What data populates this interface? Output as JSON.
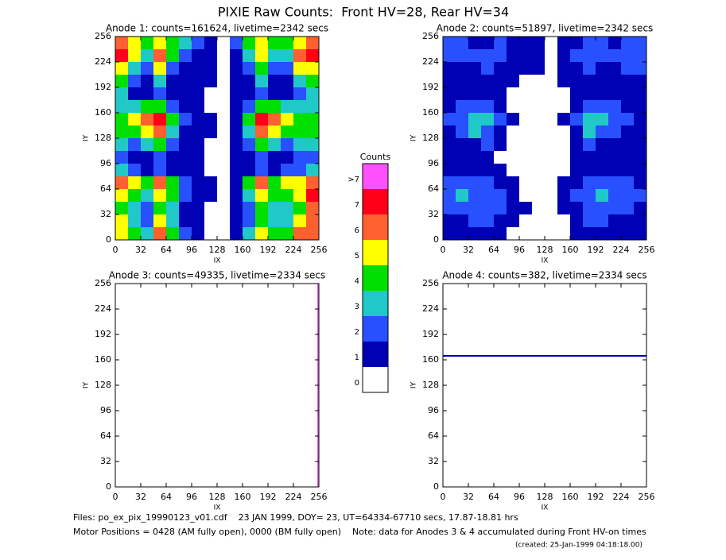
{
  "title": "PIXIE Raw Counts:  Front HV=28, Rear HV=34",
  "colorbar": {
    "title": "Counts",
    "labels": [
      "0",
      "1",
      "2",
      "3",
      "4",
      "5",
      "6",
      "7",
      ">7"
    ],
    "colors": [
      "#ffffff",
      "#0000b4",
      "#2850ff",
      "#20c8c8",
      "#00e000",
      "#ffff00",
      "#ff6030",
      "#ff0018",
      "#ff50ff"
    ]
  },
  "chart_data": [
    {
      "type": "heatmap",
      "title": "Anode 1: counts=161624, livetime=2342 secs",
      "xlabel": "IX",
      "ylabel": "IY",
      "xlim": [
        0,
        256
      ],
      "ylim": [
        0,
        256
      ],
      "xticks": [
        0,
        32,
        64,
        96,
        128,
        160,
        192,
        224,
        256
      ],
      "yticks": [
        0,
        32,
        64,
        96,
        128,
        160,
        192,
        224,
        256
      ],
      "levels": [
        [
          6,
          5,
          4,
          5,
          4,
          3,
          2,
          1,
          0,
          2,
          4,
          5,
          4,
          4,
          5,
          6
        ],
        [
          7,
          5,
          3,
          6,
          4,
          2,
          1,
          1,
          0,
          1,
          3,
          5,
          3,
          3,
          6,
          7
        ],
        [
          5,
          3,
          2,
          5,
          2,
          1,
          1,
          1,
          0,
          1,
          2,
          4,
          2,
          2,
          5,
          5
        ],
        [
          4,
          2,
          1,
          3,
          1,
          1,
          1,
          1,
          0,
          1,
          1,
          3,
          1,
          1,
          3,
          4
        ],
        [
          3,
          1,
          1,
          2,
          1,
          1,
          1,
          0,
          0,
          1,
          1,
          2,
          1,
          1,
          2,
          3
        ],
        [
          3,
          3,
          4,
          4,
          2,
          1,
          1,
          0,
          0,
          1,
          2,
          4,
          4,
          3,
          3,
          3
        ],
        [
          4,
          5,
          6,
          7,
          4,
          2,
          1,
          1,
          0,
          1,
          4,
          7,
          6,
          5,
          4,
          4
        ],
        [
          4,
          4,
          5,
          6,
          3,
          1,
          1,
          1,
          0,
          1,
          3,
          6,
          5,
          4,
          4,
          4
        ],
        [
          3,
          2,
          3,
          4,
          2,
          1,
          1,
          0,
          0,
          1,
          2,
          4,
          3,
          2,
          3,
          3
        ],
        [
          2,
          1,
          1,
          2,
          1,
          1,
          1,
          0,
          0,
          1,
          1,
          2,
          1,
          1,
          2,
          2
        ],
        [
          3,
          2,
          1,
          2,
          1,
          1,
          1,
          0,
          0,
          1,
          1,
          2,
          1,
          2,
          2,
          3
        ],
        [
          6,
          5,
          4,
          6,
          4,
          2,
          1,
          1,
          0,
          1,
          4,
          6,
          4,
          5,
          5,
          6
        ],
        [
          5,
          4,
          3,
          5,
          4,
          2,
          1,
          1,
          0,
          1,
          3,
          5,
          4,
          4,
          5,
          7
        ],
        [
          4,
          3,
          2,
          4,
          3,
          1,
          1,
          0,
          0,
          1,
          2,
          4,
          3,
          3,
          4,
          6
        ],
        [
          5,
          3,
          2,
          5,
          3,
          1,
          1,
          0,
          0,
          1,
          2,
          4,
          3,
          3,
          5,
          6
        ],
        [
          5,
          4,
          3,
          6,
          4,
          2,
          1,
          0,
          0,
          1,
          3,
          5,
          4,
          4,
          6,
          6
        ]
      ]
    },
    {
      "type": "heatmap",
      "title": "Anode 2: counts=51897, livetime=2342 secs",
      "xlabel": "IX",
      "ylabel": "IY",
      "xlim": [
        0,
        256
      ],
      "ylim": [
        0,
        256
      ],
      "xticks": [
        0,
        32,
        64,
        96,
        128,
        160,
        192,
        224,
        256
      ],
      "yticks": [
        0,
        32,
        64,
        96,
        128,
        160,
        192,
        224,
        256
      ],
      "levels": [
        [
          2,
          2,
          1,
          1,
          2,
          1,
          1,
          1,
          0,
          1,
          1,
          2,
          2,
          1,
          2,
          2
        ],
        [
          2,
          2,
          2,
          2,
          2,
          1,
          1,
          1,
          0,
          1,
          2,
          2,
          2,
          2,
          2,
          2
        ],
        [
          1,
          1,
          1,
          2,
          1,
          1,
          1,
          1,
          0,
          1,
          1,
          2,
          1,
          1,
          2,
          2
        ],
        [
          1,
          1,
          1,
          1,
          1,
          1,
          0,
          0,
          0,
          1,
          1,
          1,
          1,
          1,
          1,
          1
        ],
        [
          1,
          1,
          1,
          1,
          1,
          0,
          0,
          0,
          0,
          0,
          1,
          1,
          1,
          1,
          1,
          1
        ],
        [
          1,
          2,
          2,
          2,
          1,
          0,
          0,
          0,
          0,
          0,
          1,
          2,
          2,
          2,
          1,
          1
        ],
        [
          2,
          2,
          3,
          3,
          2,
          1,
          0,
          0,
          0,
          1,
          2,
          3,
          3,
          2,
          2,
          1
        ],
        [
          1,
          2,
          3,
          2,
          1,
          0,
          0,
          0,
          0,
          0,
          1,
          3,
          2,
          2,
          1,
          1
        ],
        [
          1,
          1,
          1,
          2,
          1,
          0,
          0,
          0,
          0,
          0,
          1,
          2,
          1,
          1,
          1,
          1
        ],
        [
          1,
          1,
          1,
          1,
          0,
          0,
          0,
          0,
          0,
          0,
          1,
          1,
          1,
          1,
          1,
          1
        ],
        [
          1,
          1,
          1,
          1,
          1,
          0,
          0,
          0,
          0,
          0,
          1,
          1,
          1,
          1,
          1,
          1
        ],
        [
          2,
          2,
          2,
          2,
          1,
          1,
          0,
          0,
          0,
          1,
          1,
          2,
          2,
          2,
          2,
          1
        ],
        [
          2,
          3,
          2,
          2,
          2,
          1,
          0,
          0,
          0,
          1,
          2,
          2,
          3,
          2,
          2,
          2
        ],
        [
          2,
          2,
          2,
          2,
          2,
          1,
          1,
          0,
          0,
          1,
          1,
          2,
          2,
          2,
          2,
          1
        ],
        [
          1,
          1,
          2,
          2,
          1,
          1,
          0,
          0,
          0,
          0,
          1,
          2,
          2,
          1,
          1,
          1
        ],
        [
          1,
          1,
          1,
          1,
          1,
          0,
          0,
          0,
          0,
          0,
          1,
          1,
          1,
          1,
          1,
          1
        ]
      ]
    },
    {
      "type": "heatmap",
      "title": "Anode 3: counts=49335, livetime=2334 secs",
      "xlabel": "IX",
      "ylabel": "IY",
      "xlim": [
        0,
        256
      ],
      "ylim": [
        0,
        256
      ],
      "xticks": [
        0,
        32,
        64,
        96,
        128,
        160,
        192,
        224,
        256
      ],
      "yticks": [
        0,
        32,
        64,
        96,
        128,
        160,
        192,
        224,
        256
      ],
      "lines": [
        {
          "x": 255,
          "level": 8
        }
      ]
    },
    {
      "type": "heatmap",
      "title": "Anode 4: counts=382, livetime=2334 secs",
      "xlabel": "IX",
      "ylabel": "IY",
      "xlim": [
        0,
        256
      ],
      "ylim": [
        0,
        256
      ],
      "xticks": [
        0,
        32,
        64,
        96,
        128,
        160,
        192,
        224,
        256
      ],
      "yticks": [
        0,
        32,
        64,
        96,
        128,
        160,
        192,
        224,
        256
      ],
      "lines": [
        {
          "y": 165,
          "level": 1
        }
      ]
    }
  ],
  "footer": [
    "Files: po_ex_pix_19990123_v01.cdf    23 JAN 1999, DOY= 23, UT=64334-67710 secs, 17.87-18.81 hrs",
    "Motor Positions = 0428 (AM fully open), 0000 (BM fully open)    Note: data for Anodes 3 & 4 accumulated during Front HV-on times",
    "(created: 25-Jan-1999 04:18:18.00)"
  ]
}
